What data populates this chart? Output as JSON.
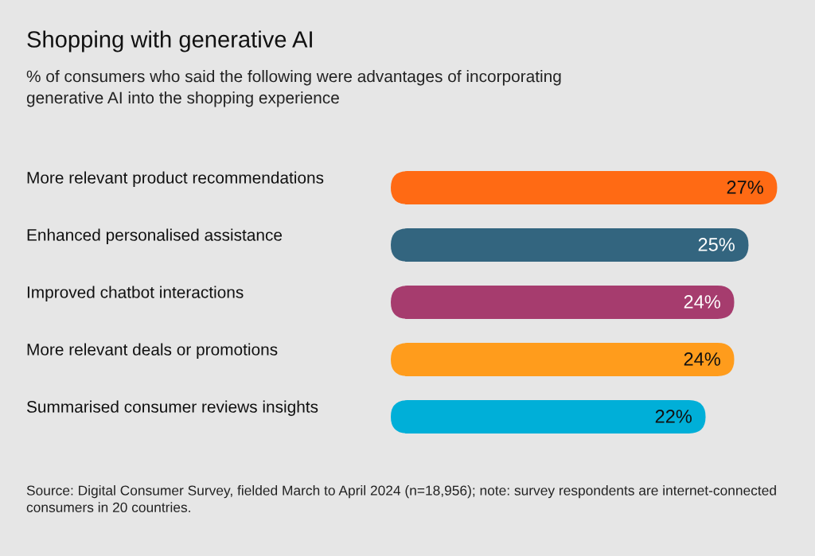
{
  "chart_data": {
    "type": "bar",
    "orientation": "horizontal",
    "title": "Shopping with generative AI",
    "subtitle": "% of consumers who said the following were advantages of incorporating\ngenerative AI into the shopping experience",
    "categories": [
      "More relevant product recommendations",
      "Enhanced personalised assistance",
      "Improved chatbot interactions",
      "More relevant deals or promotions",
      "Summarised consumer reviews insights"
    ],
    "values": [
      27,
      25,
      24,
      24,
      22
    ],
    "value_labels": [
      "27%",
      "25%",
      "24%",
      "24%",
      "22%"
    ],
    "colors": [
      "#ff6a14",
      "#33657f",
      "#a63c6e",
      "#ff9c1c",
      "#00afd8"
    ],
    "annotations": [
      "Source: Digital Consumer Survey, fielded March to April 2024 (n=18,956); note: survey respondents are internet-connected consumers in 20 countries."
    ],
    "legend": false
  }
}
